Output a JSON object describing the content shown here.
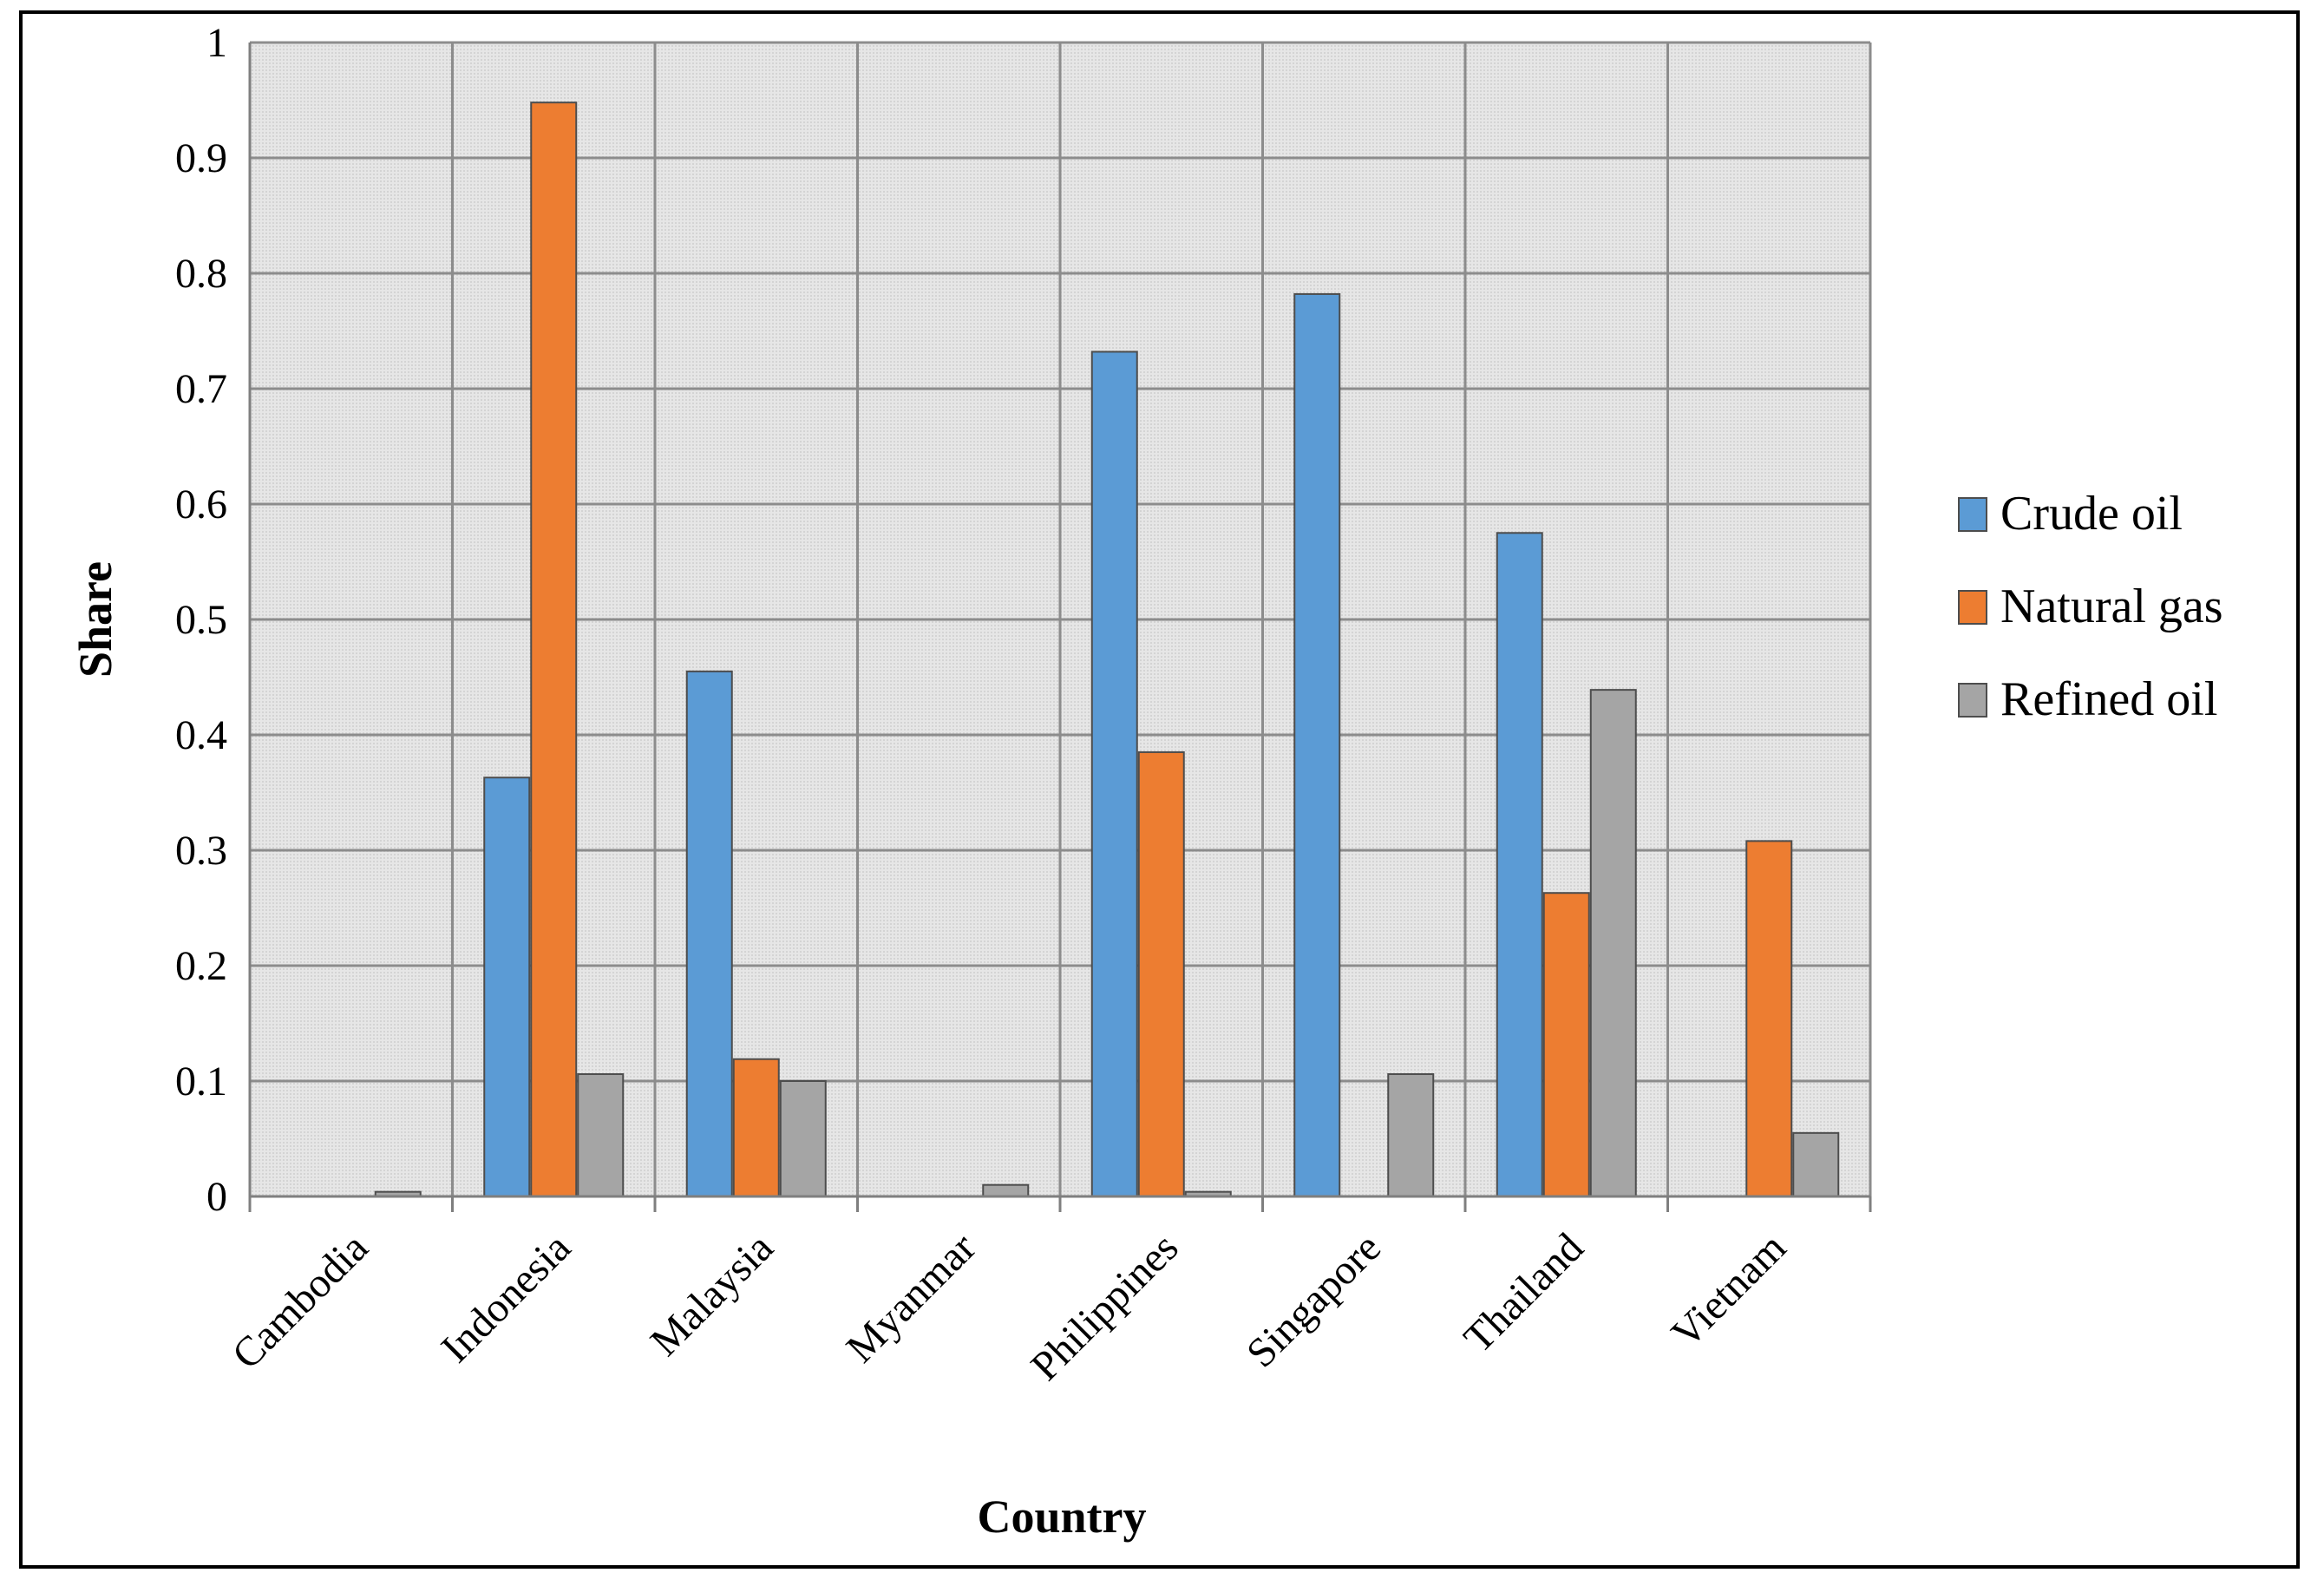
{
  "chart_data": {
    "type": "bar",
    "xlabel": "Country",
    "ylabel": "Share",
    "ylim": [
      0,
      1
    ],
    "yticks": [
      "0",
      "0.1",
      "0.2",
      "0.3",
      "0.4",
      "0.5",
      "0.6",
      "0.7",
      "0.8",
      "0.9",
      "1"
    ],
    "categories": [
      "Cambodia",
      "Indonesia",
      "Malaysia",
      "Myanmar",
      "Philippines",
      "Singapore",
      "Thailand",
      "Vietnam"
    ],
    "series": [
      {
        "name": "Crude oil",
        "color": "#5b9bd5",
        "values": [
          0,
          0.363,
          0.455,
          0,
          0.732,
          0.782,
          0.575,
          0
        ]
      },
      {
        "name": "Natural gas",
        "color": "#ed7d31",
        "values": [
          0,
          0.948,
          0.119,
          0,
          0.385,
          0,
          0.263,
          0.308
        ]
      },
      {
        "name": "Refined oil",
        "color": "#a5a5a5",
        "values": [
          0.004,
          0.106,
          0.1,
          0.01,
          0.004,
          0.106,
          0.439,
          0.055
        ]
      }
    ],
    "grid": true,
    "legend_position": "right"
  }
}
